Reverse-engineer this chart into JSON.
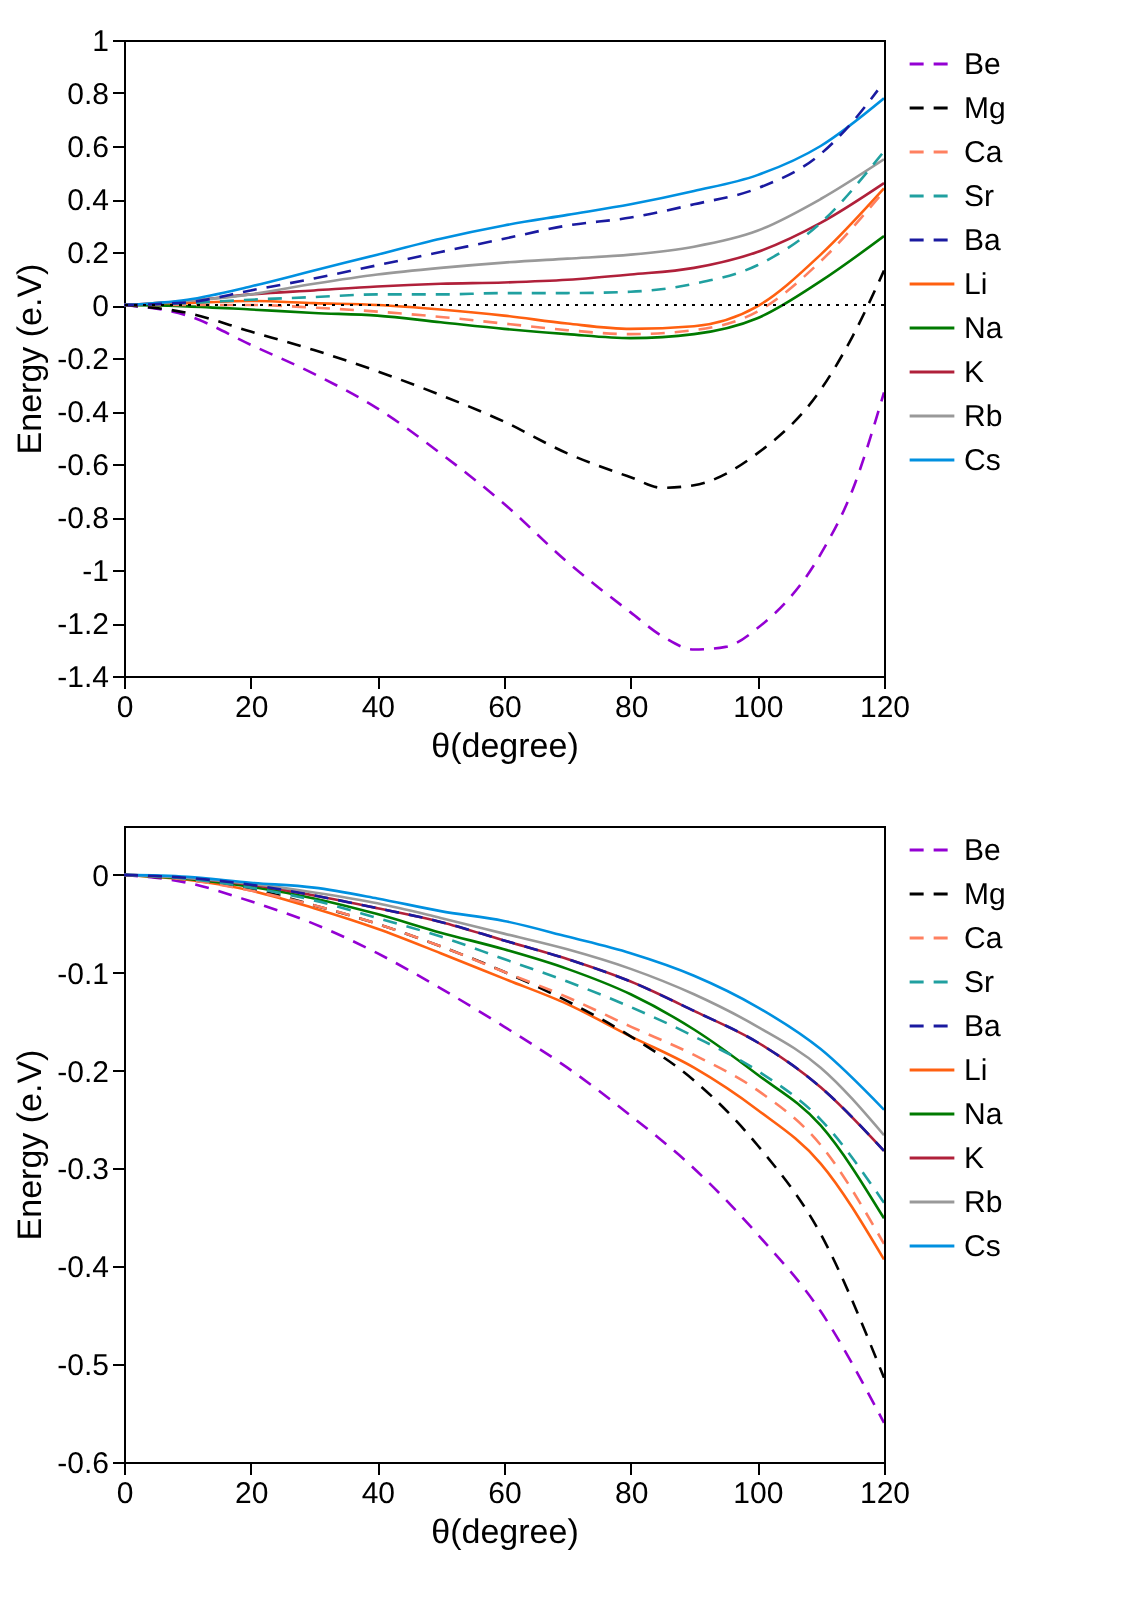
{
  "chart_data": [
    {
      "type": "line",
      "xlabel": "θ(degree)",
      "ylabel": "Energy (e.V)",
      "xlim": [
        0,
        120
      ],
      "ylim": [
        -1.4,
        1
      ],
      "xticks": [
        0,
        20,
        40,
        60,
        80,
        100,
        120
      ],
      "yticks": [
        -1.4,
        -1.2,
        -1,
        -0.8,
        -0.6,
        -0.4,
        -0.2,
        0,
        0.2,
        0.4,
        0.6,
        0.8,
        1
      ],
      "legend": "right",
      "x": [
        0,
        10,
        20,
        30,
        40,
        50,
        60,
        70,
        80,
        90,
        100,
        110,
        120
      ],
      "ref_lines": [
        {
          "axis": "y",
          "value": 0,
          "color": "#000000",
          "line_style": "dotted"
        }
      ],
      "series": [
        {
          "name": "Be",
          "color": "#9400d3",
          "line_style": "dashed",
          "x": [
            0,
            10,
            20,
            30,
            40,
            50,
            60,
            70,
            80,
            85,
            90,
            95,
            100,
            110,
            115,
            120
          ],
          "values": [
            0,
            -0.04,
            -0.15,
            -0.26,
            -0.39,
            -0.56,
            -0.75,
            -0.97,
            -1.16,
            -1.25,
            -1.3,
            -1.29,
            -1.22,
            -0.94,
            -0.7,
            -0.33
          ]
        },
        {
          "name": "Mg",
          "color": "#000000",
          "line_style": "dashed",
          "x": [
            0,
            10,
            20,
            30,
            40,
            50,
            60,
            70,
            80,
            85,
            90,
            100,
            110,
            115,
            120
          ],
          "values": [
            0,
            -0.03,
            -0.1,
            -0.17,
            -0.25,
            -0.34,
            -0.44,
            -0.56,
            -0.65,
            -0.69,
            -0.68,
            -0.56,
            -0.32,
            -0.12,
            0.13
          ]
        },
        {
          "name": "Ca",
          "color": "#ff8060",
          "line_style": "dashed",
          "values": [
            0,
            0,
            0,
            -0.01,
            -0.025,
            -0.045,
            -0.07,
            -0.095,
            -0.11,
            -0.095,
            -0.025,
            0.165,
            0.43
          ]
        },
        {
          "name": "Sr",
          "color": "#20a0a0",
          "line_style": "dashed",
          "values": [
            0,
            0.007,
            0.02,
            0.03,
            0.04,
            0.04,
            0.045,
            0.045,
            0.05,
            0.08,
            0.15,
            0.31,
            0.58
          ]
        },
        {
          "name": "Ba",
          "color": "#1a1aa0",
          "line_style": "dashed",
          "x": [
            0,
            10,
            20,
            30,
            40,
            50,
            60,
            70,
            80,
            90,
            100,
            110,
            115,
            119
          ],
          "values": [
            0,
            0.01,
            0.055,
            0.1,
            0.15,
            0.2,
            0.25,
            0.3,
            0.33,
            0.38,
            0.44,
            0.57,
            0.69,
            0.81
          ]
        },
        {
          "name": "Li",
          "color": "#ff6010",
          "line_style": "solid",
          "values": [
            0,
            0.007,
            0.015,
            0.007,
            0,
            -0.017,
            -0.04,
            -0.07,
            -0.09,
            -0.08,
            -0.005,
            0.19,
            0.44
          ]
        },
        {
          "name": "Na",
          "color": "#007a00",
          "line_style": "solid",
          "values": [
            0,
            -0.005,
            -0.017,
            -0.03,
            -0.04,
            -0.065,
            -0.09,
            -0.11,
            -0.125,
            -0.11,
            -0.05,
            0.09,
            0.26
          ]
        },
        {
          "name": "K",
          "color": "#b0203a",
          "line_style": "solid",
          "values": [
            0,
            0.015,
            0.04,
            0.055,
            0.07,
            0.08,
            0.085,
            0.095,
            0.115,
            0.14,
            0.2,
            0.31,
            0.46
          ]
        },
        {
          "name": "Rb",
          "color": "#999999",
          "line_style": "solid",
          "values": [
            0,
            0.015,
            0.04,
            0.08,
            0.115,
            0.14,
            0.16,
            0.175,
            0.19,
            0.22,
            0.28,
            0.4,
            0.55
          ]
        },
        {
          "name": "Cs",
          "color": "#0090e0",
          "line_style": "solid",
          "values": [
            0,
            0.02,
            0.07,
            0.13,
            0.19,
            0.25,
            0.3,
            0.34,
            0.38,
            0.43,
            0.49,
            0.6,
            0.78
          ]
        }
      ]
    },
    {
      "type": "line",
      "xlabel": "θ(degree)",
      "ylabel": "Energy (e.V)",
      "xlim": [
        0,
        120
      ],
      "ylim": [
        -0.6,
        0.05
      ],
      "xticks": [
        0,
        20,
        40,
        60,
        80,
        100,
        120
      ],
      "yticks": [
        -0.6,
        -0.5,
        -0.4,
        -0.3,
        -0.2,
        -0.1,
        0
      ],
      "legend": "right",
      "x": [
        0,
        10,
        20,
        30,
        40,
        50,
        60,
        70,
        80,
        90,
        100,
        110,
        120
      ],
      "series": [
        {
          "name": "Be",
          "color": "#9400d3",
          "line_style": "dashed",
          "values": [
            0,
            -0.008,
            -0.027,
            -0.05,
            -0.08,
            -0.116,
            -0.155,
            -0.197,
            -0.246,
            -0.3,
            -0.367,
            -0.446,
            -0.56
          ]
        },
        {
          "name": "Mg",
          "color": "#000000",
          "line_style": "dashed",
          "values": [
            0,
            -0.005,
            -0.014,
            -0.031,
            -0.05,
            -0.073,
            -0.099,
            -0.129,
            -0.165,
            -0.21,
            -0.276,
            -0.367,
            -0.514
          ]
        },
        {
          "name": "Ca",
          "color": "#ff8060",
          "line_style": "dashed",
          "values": [
            0,
            -0.005,
            -0.016,
            -0.031,
            -0.05,
            -0.073,
            -0.099,
            -0.125,
            -0.155,
            -0.184,
            -0.22,
            -0.276,
            -0.377
          ]
        },
        {
          "name": "Sr",
          "color": "#20a0a0",
          "line_style": "dashed",
          "values": [
            0,
            -0.004,
            -0.013,
            -0.026,
            -0.044,
            -0.063,
            -0.086,
            -0.109,
            -0.135,
            -0.165,
            -0.2,
            -0.25,
            -0.335
          ]
        },
        {
          "name": "Ba",
          "color": "#1a1aa0",
          "line_style": "dashed",
          "values": [
            0,
            -0.003,
            -0.01,
            -0.021,
            -0.034,
            -0.048,
            -0.067,
            -0.086,
            -0.109,
            -0.139,
            -0.171,
            -0.217,
            -0.282
          ]
        },
        {
          "name": "Li",
          "color": "#ff6010",
          "line_style": "solid",
          "values": [
            0,
            -0.005,
            -0.016,
            -0.034,
            -0.055,
            -0.08,
            -0.106,
            -0.132,
            -0.165,
            -0.197,
            -0.24,
            -0.295,
            -0.393
          ]
        },
        {
          "name": "Na",
          "color": "#007a00",
          "line_style": "solid",
          "values": [
            0,
            -0.004,
            -0.012,
            -0.024,
            -0.04,
            -0.059,
            -0.076,
            -0.096,
            -0.122,
            -0.158,
            -0.204,
            -0.256,
            -0.351
          ]
        },
        {
          "name": "K",
          "color": "#b0203a",
          "line_style": "solid",
          "values": [
            0,
            -0.003,
            -0.01,
            -0.021,
            -0.034,
            -0.048,
            -0.067,
            -0.086,
            -0.109,
            -0.139,
            -0.171,
            -0.217,
            -0.282
          ]
        },
        {
          "name": "Rb",
          "color": "#999999",
          "line_style": "solid",
          "values": [
            0,
            -0.003,
            -0.009,
            -0.018,
            -0.029,
            -0.044,
            -0.06,
            -0.076,
            -0.096,
            -0.122,
            -0.155,
            -0.197,
            -0.266
          ]
        },
        {
          "name": "Cs",
          "color": "#0090e0",
          "line_style": "solid",
          "values": [
            0,
            -0.002,
            -0.008,
            -0.013,
            -0.024,
            -0.037,
            -0.047,
            -0.063,
            -0.08,
            -0.103,
            -0.135,
            -0.178,
            -0.24
          ]
        }
      ]
    }
  ]
}
